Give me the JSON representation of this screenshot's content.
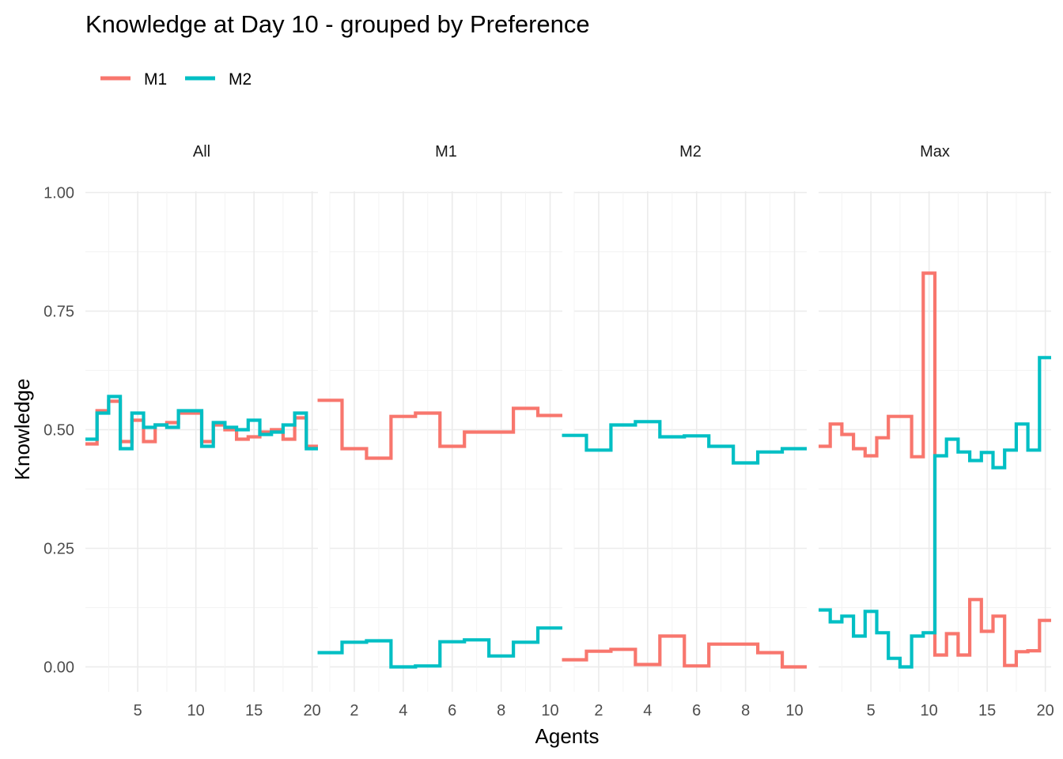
{
  "chart_data": {
    "type": "line",
    "title": "Knowledge at Day 10 - grouped by Preference",
    "xlabel": "Agents",
    "ylabel": "Knowledge",
    "ylim": [
      -0.05,
      1.05
    ],
    "yticks": [
      "0.00",
      "0.25",
      "0.50",
      "0.75",
      "1.00"
    ],
    "legend": {
      "placement": "top-left",
      "entries": [
        {
          "name": "M1",
          "color": "#F8766D"
        },
        {
          "name": "M2",
          "color": "#00BFC4"
        }
      ]
    },
    "grid": true,
    "step": "mid",
    "panels": [
      {
        "label": "All",
        "xlim": [
          0.5,
          20.5
        ],
        "xticks": [
          5,
          10,
          15,
          20
        ],
        "series": [
          {
            "name": "M1",
            "color": "#F8766D",
            "x": [
              1,
              2,
              3,
              4,
              5,
              6,
              7,
              8,
              9,
              10,
              11,
              12,
              13,
              14,
              15,
              16,
              17,
              18,
              19,
              20
            ],
            "y": [
              0.47,
              0.54,
              0.56,
              0.475,
              0.52,
              0.475,
              0.51,
              0.515,
              0.535,
              0.535,
              0.475,
              0.51,
              0.5,
              0.48,
              0.485,
              0.495,
              0.5,
              0.48,
              0.525,
              0.465
            ]
          },
          {
            "name": "M2",
            "color": "#00BFC4",
            "x": [
              1,
              2,
              3,
              4,
              5,
              6,
              7,
              8,
              9,
              10,
              11,
              12,
              13,
              14,
              15,
              16,
              17,
              18,
              19,
              20
            ],
            "y": [
              0.48,
              0.535,
              0.57,
              0.46,
              0.535,
              0.505,
              0.51,
              0.505,
              0.54,
              0.54,
              0.465,
              0.515,
              0.505,
              0.5,
              0.52,
              0.49,
              0.495,
              0.51,
              0.535,
              0.46
            ]
          }
        ]
      },
      {
        "label": "M1",
        "xlim": [
          1.0,
          10.5
        ],
        "xticks": [
          2,
          4,
          6,
          8,
          10
        ],
        "series": [
          {
            "name": "M1",
            "color": "#F8766D",
            "x": [
              1,
              2,
              3,
              4,
              5,
              6,
              7,
              8,
              9,
              10
            ],
            "y": [
              0.562,
              0.46,
              0.44,
              0.528,
              0.535,
              0.465,
              0.495,
              0.495,
              0.545,
              0.53
            ]
          },
          {
            "name": "M2",
            "color": "#00BFC4",
            "x": [
              1,
              2,
              3,
              4,
              5,
              6,
              7,
              8,
              9,
              10
            ],
            "y": [
              0.03,
              0.052,
              0.055,
              0.0,
              0.002,
              0.053,
              0.057,
              0.023,
              0.052,
              0.082
            ]
          }
        ]
      },
      {
        "label": "M2",
        "xlim": [
          1.0,
          10.5
        ],
        "xticks": [
          2,
          4,
          6,
          8,
          10
        ],
        "series": [
          {
            "name": "M1",
            "color": "#F8766D",
            "x": [
              1,
              2,
              3,
              4,
              5,
              6,
              7,
              8,
              9,
              10
            ],
            "y": [
              0.015,
              0.033,
              0.037,
              0.005,
              0.065,
              0.002,
              0.048,
              0.048,
              0.03,
              0.0
            ]
          },
          {
            "name": "M2",
            "color": "#00BFC4",
            "x": [
              1,
              2,
              3,
              4,
              5,
              6,
              7,
              8,
              9,
              10
            ],
            "y": [
              0.488,
              0.457,
              0.51,
              0.517,
              0.485,
              0.487,
              0.465,
              0.43,
              0.453,
              0.46
            ]
          }
        ]
      },
      {
        "label": "Max",
        "xlim": [
          0.5,
          20.5
        ],
        "xticks": [
          5,
          10,
          15,
          20
        ],
        "series": [
          {
            "name": "M1",
            "color": "#F8766D",
            "x": [
              1,
              2,
              3,
              4,
              5,
              6,
              7,
              8,
              9,
              10,
              11,
              12,
              13,
              14,
              15,
              16,
              17,
              18,
              19,
              20
            ],
            "y": [
              0.465,
              0.512,
              0.49,
              0.46,
              0.445,
              0.483,
              0.528,
              0.528,
              0.443,
              0.83,
              0.025,
              0.07,
              0.025,
              0.142,
              0.075,
              0.107,
              0.003,
              0.032,
              0.034,
              0.098
            ]
          },
          {
            "name": "M2",
            "color": "#00BFC4",
            "x": [
              1,
              2,
              3,
              4,
              5,
              6,
              7,
              8,
              9,
              10,
              11,
              12,
              13,
              14,
              15,
              16,
              17,
              18,
              19,
              20
            ],
            "y": [
              0.12,
              0.095,
              0.107,
              0.065,
              0.117,
              0.072,
              0.018,
              0.0,
              0.065,
              0.072,
              0.445,
              0.48,
              0.453,
              0.435,
              0.452,
              0.42,
              0.457,
              0.512,
              0.457,
              0.652
            ]
          }
        ]
      }
    ]
  }
}
